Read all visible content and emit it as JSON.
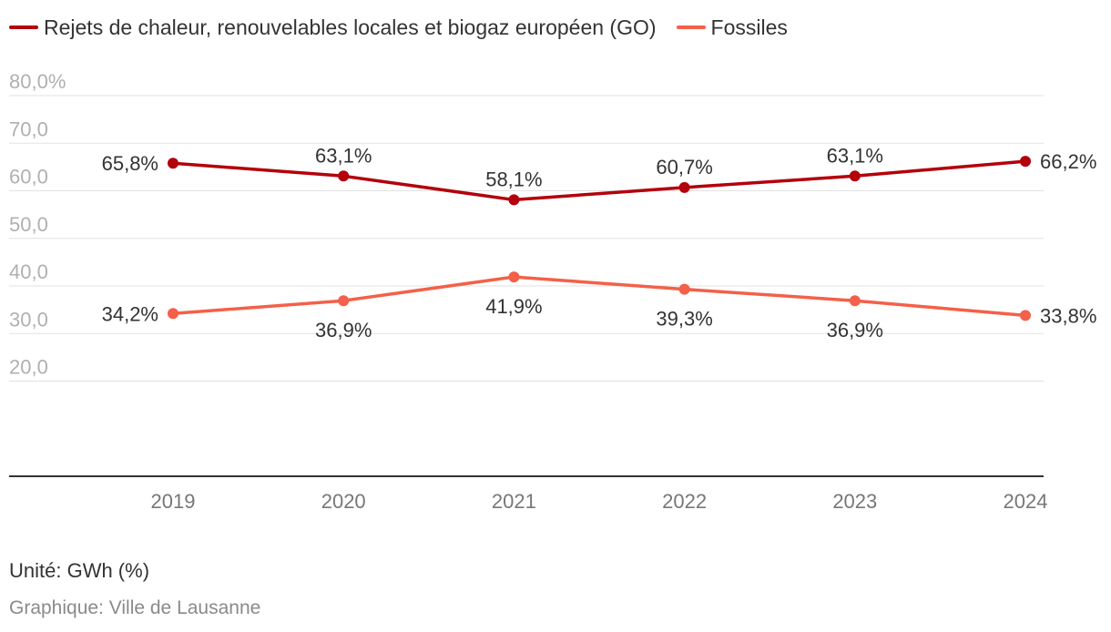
{
  "chart_data": {
    "type": "line",
    "categories": [
      "2019",
      "2020",
      "2021",
      "2022",
      "2023",
      "2024"
    ],
    "series": [
      {
        "name": "Rejets de chaleur, renouvelables locales et biogaz européen (GO)",
        "color": "#b3000b",
        "values": [
          65.8,
          63.1,
          58.1,
          60.7,
          63.1,
          66.2
        ],
        "labels": [
          "65,8%",
          "63,1%",
          "58,1%",
          "60,7%",
          "63,1%",
          "66,2%"
        ]
      },
      {
        "name": "Fossiles",
        "color": "#f46049",
        "values": [
          34.2,
          36.9,
          41.9,
          39.3,
          36.9,
          33.8
        ],
        "labels": [
          "34,2%",
          "36,9%",
          "41,9%",
          "39,3%",
          "36,9%",
          "33,8%"
        ]
      }
    ],
    "y_ticks": [
      {
        "value": 80,
        "label": "80,0%"
      },
      {
        "value": 70,
        "label": "70,0"
      },
      {
        "value": 60,
        "label": "60,0"
      },
      {
        "value": 50,
        "label": "50,0"
      },
      {
        "value": 40,
        "label": "40,0"
      },
      {
        "value": 30,
        "label": "30,0"
      },
      {
        "value": 20,
        "label": "20,0"
      }
    ],
    "ylim": [
      0,
      80
    ],
    "grid": true,
    "legend_position": "top-left"
  },
  "footer": {
    "unit": "Unité: GWh (%)",
    "credit": "Graphique: Ville de Lausanne"
  }
}
